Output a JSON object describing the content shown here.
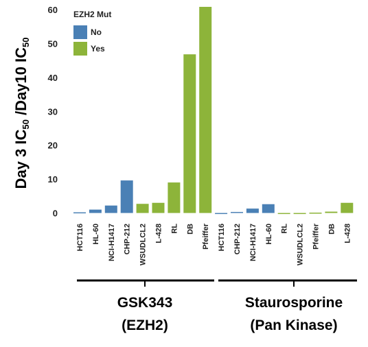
{
  "chart_data": {
    "type": "bar",
    "ylabel_parts": [
      "Day 3 IC",
      "50",
      " /Day10 IC",
      "50"
    ],
    "ylim": [
      -1.5,
      61
    ],
    "yticks": [
      0,
      10,
      20,
      30,
      40,
      50,
      60
    ],
    "legend": {
      "title": "EZH2 Mut",
      "placement": "top-left",
      "entries": [
        {
          "label": "No",
          "color": "#4a80b5"
        },
        {
          "label": "Yes",
          "color": "#8db43a"
        }
      ]
    },
    "groups": [
      {
        "label_line1": "GSK343",
        "label_line2": "(EZH2)",
        "bars": [
          {
            "category": "HCT116",
            "value": 0.2,
            "ezh2_mut": "No"
          },
          {
            "category": "HL-60",
            "value": 1.0,
            "ezh2_mut": "No"
          },
          {
            "category": "NCI-H1417",
            "value": 2.2,
            "ezh2_mut": "No"
          },
          {
            "category": "CHP-212",
            "value": 9.6,
            "ezh2_mut": "No"
          },
          {
            "category": "WSUDLCL2",
            "value": 2.7,
            "ezh2_mut": "Yes"
          },
          {
            "category": "L-428",
            "value": 3.0,
            "ezh2_mut": "Yes"
          },
          {
            "category": "RL",
            "value": 9.0,
            "ezh2_mut": "Yes"
          },
          {
            "category": "DB",
            "value": 46.8,
            "ezh2_mut": "Yes"
          },
          {
            "category": "Pfeiffer",
            "value": 60.8,
            "ezh2_mut": "Yes"
          }
        ]
      },
      {
        "label_line1": "Staurosporine",
        "label_line2": "(Pan Kinase)",
        "bars": [
          {
            "category": "HCT116",
            "value": -0.2,
            "ezh2_mut": "No"
          },
          {
            "category": "CHP-212",
            "value": 0.3,
            "ezh2_mut": "No"
          },
          {
            "category": "NCI-H1417",
            "value": 1.3,
            "ezh2_mut": "No"
          },
          {
            "category": "HL-60",
            "value": 2.6,
            "ezh2_mut": "No"
          },
          {
            "category": "RL",
            "value": -0.2,
            "ezh2_mut": "Yes"
          },
          {
            "category": "WSUDLCL2",
            "value": -0.1,
            "ezh2_mut": "Yes"
          },
          {
            "category": "Pfeiffer",
            "value": 0.1,
            "ezh2_mut": "Yes"
          },
          {
            "category": "DB",
            "value": 0.4,
            "ezh2_mut": "Yes"
          },
          {
            "category": "L-428",
            "value": 3.0,
            "ezh2_mut": "Yes"
          }
        ]
      }
    ]
  }
}
